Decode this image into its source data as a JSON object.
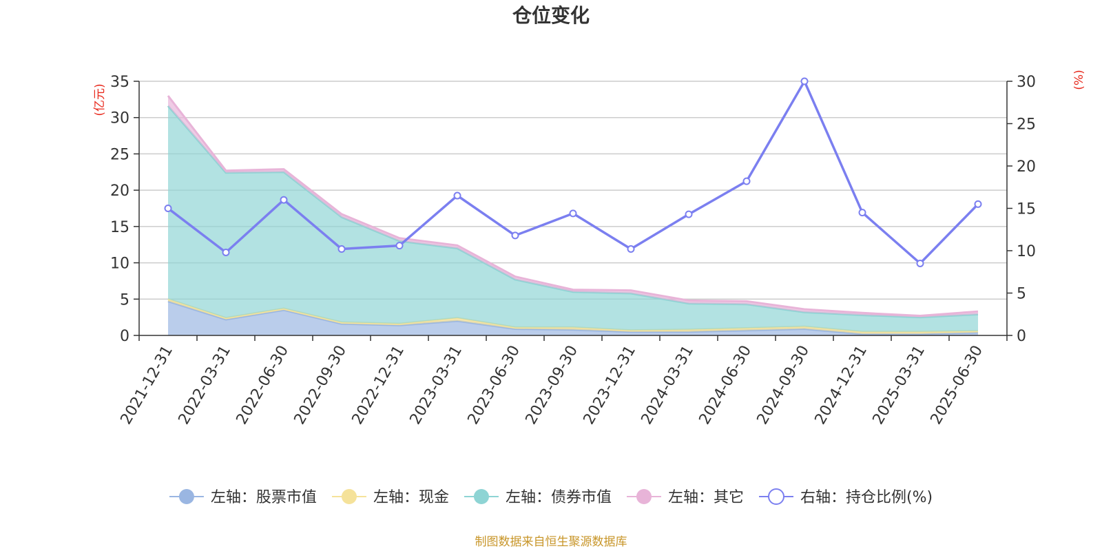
{
  "chart_data": {
    "type": "area",
    "title": "仓位变化",
    "left_axis_unit": "(亿元)",
    "right_axis_unit": "(%)",
    "ylim_left": [
      0,
      35
    ],
    "ylim_right": [
      0,
      30
    ],
    "y_ticks_left": [
      "0",
      "5",
      "10",
      "15",
      "20",
      "25",
      "30",
      "35"
    ],
    "y_ticks_right": [
      "0",
      "5",
      "10",
      "15",
      "20",
      "25",
      "30"
    ],
    "grid": true,
    "stacked": true,
    "legend_position": "bottom-center",
    "categories": [
      "2021-12-31",
      "2022-03-31",
      "2022-06-30",
      "2022-09-30",
      "2022-12-31",
      "2023-03-31",
      "2023-06-30",
      "2023-09-30",
      "2023-12-31",
      "2024-03-31",
      "2024-06-30",
      "2024-09-30",
      "2024-12-31",
      "2025-03-31",
      "2025-06-30"
    ],
    "series": [
      {
        "name": "左轴：股票市值",
        "axis": "left",
        "type": "area",
        "color": "#9ab6e2",
        "values": [
          4.7,
          2.2,
          3.5,
          1.6,
          1.4,
          2.0,
          0.9,
          0.8,
          0.5,
          0.5,
          0.7,
          0.9,
          0.2,
          0.2,
          0.4
        ]
      },
      {
        "name": "左轴：现金",
        "axis": "left",
        "type": "area",
        "color": "#f5e29a",
        "values": [
          0.3,
          0.2,
          0.2,
          0.2,
          0.2,
          0.4,
          0.2,
          0.3,
          0.2,
          0.3,
          0.3,
          0.3,
          0.3,
          0.3,
          0.2
        ]
      },
      {
        "name": "左轴：债券市值",
        "axis": "left",
        "type": "area",
        "color": "#8ed4d4",
        "values": [
          26.6,
          20.0,
          18.8,
          14.5,
          11.4,
          9.6,
          6.6,
          4.9,
          5.1,
          3.6,
          3.3,
          2.0,
          2.3,
          2.0,
          2.3
        ]
      },
      {
        "name": "左轴：其它",
        "axis": "left",
        "type": "area",
        "color": "#e8b4d8",
        "values": [
          1.4,
          0.3,
          0.4,
          0.4,
          0.4,
          0.4,
          0.4,
          0.3,
          0.4,
          0.4,
          0.4,
          0.4,
          0.3,
          0.2,
          0.4
        ]
      },
      {
        "name": "右轴：持仓比例(%)",
        "axis": "right",
        "type": "line",
        "color": "#7b7ff0",
        "values": [
          15.0,
          9.8,
          16.0,
          10.2,
          10.6,
          16.5,
          11.8,
          14.4,
          10.2,
          14.3,
          18.2,
          30.0,
          14.5,
          8.5,
          15.5
        ]
      }
    ]
  },
  "footer": {
    "source_text": "制图数据来自恒生聚源数据库"
  },
  "colors": {
    "unit_label": "#e8291c",
    "source_text": "#c8962a",
    "axis": "#333333",
    "grid": "#cccccc"
  }
}
